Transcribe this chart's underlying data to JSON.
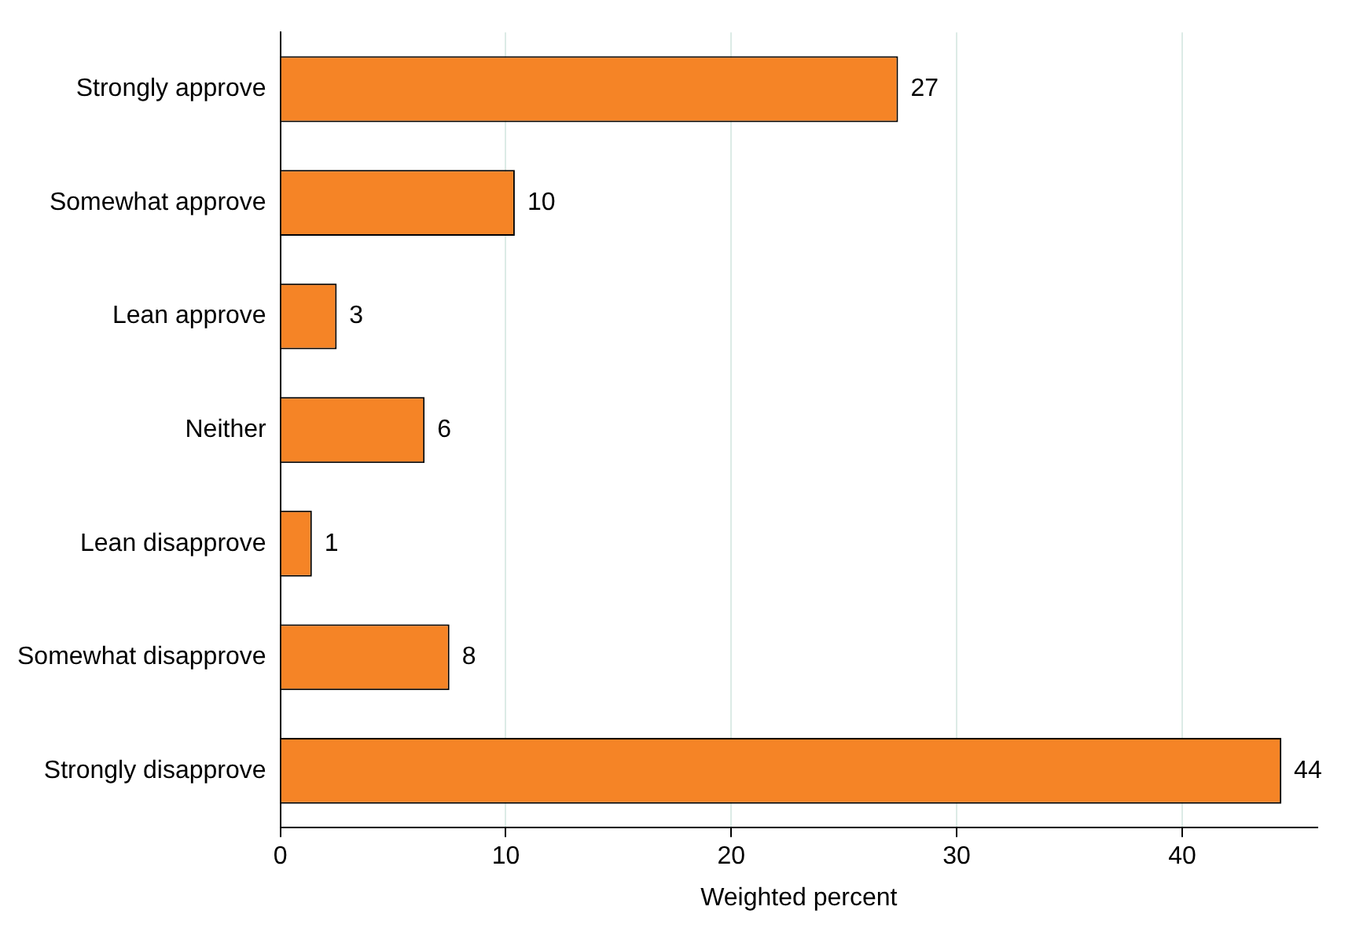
{
  "chart_data": {
    "type": "bar",
    "orientation": "horizontal",
    "xlabel": "Weighted percent",
    "categories": [
      "Strongly approve",
      "Somewhat approve",
      "Lean approve",
      "Neither",
      "Lean disapprove",
      "Somewhat disapprove",
      "Strongly disapprove"
    ],
    "values": [
      27.4,
      10.4,
      2.5,
      6.4,
      1.4,
      7.5,
      44.4
    ],
    "value_labels": [
      "27",
      "10",
      "3",
      "6",
      "1",
      "8",
      "44"
    ],
    "color": "#f58426",
    "xlim": [
      0,
      46
    ],
    "xticks": [
      0,
      10,
      20,
      30,
      40
    ],
    "grid": "x",
    "legend": false
  }
}
